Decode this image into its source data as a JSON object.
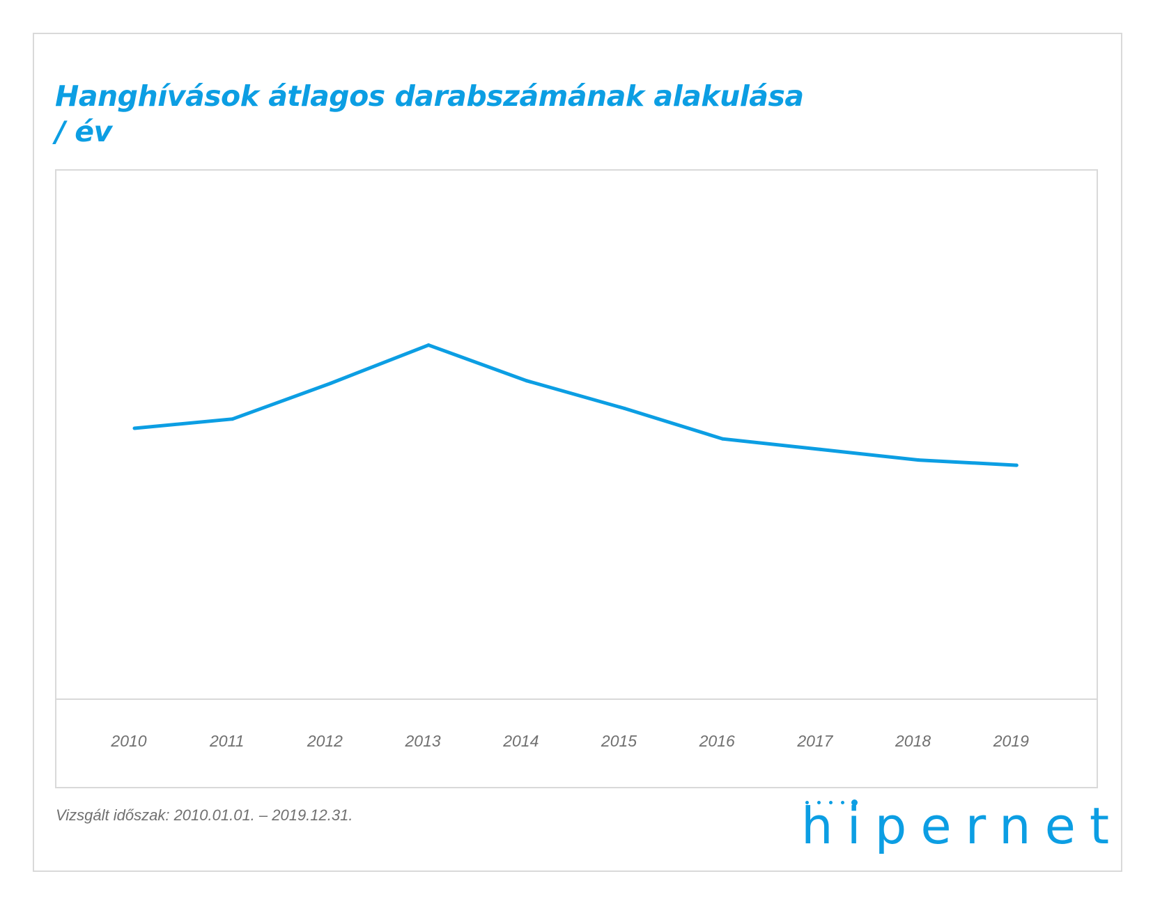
{
  "title": "Hanghívások átlagos darabszámának alakulása / év",
  "footnote": "Vizsgált időszak: 2010.01.01. – 2019.12.31.",
  "logo": {
    "text": "hipernet",
    "name": "hipernet-logo"
  },
  "colors": {
    "accent": "#0c9ee3",
    "frame": "#d9d9d9",
    "label": "#707070"
  },
  "chart_data": {
    "type": "line",
    "x": [
      "2010",
      "2011",
      "2012",
      "2013",
      "2014",
      "2015",
      "2016",
      "2017",
      "2018",
      "2019"
    ],
    "series": [
      {
        "values": [
          20.5,
          21.2,
          23.9,
          26.8,
          24.1,
          22.0,
          19.7,
          18.9,
          18.1,
          17.7
        ]
      }
    ],
    "ylim": [
      0,
      40
    ],
    "grid": false,
    "legend": "none",
    "xlabel": "",
    "ylabel": ""
  }
}
